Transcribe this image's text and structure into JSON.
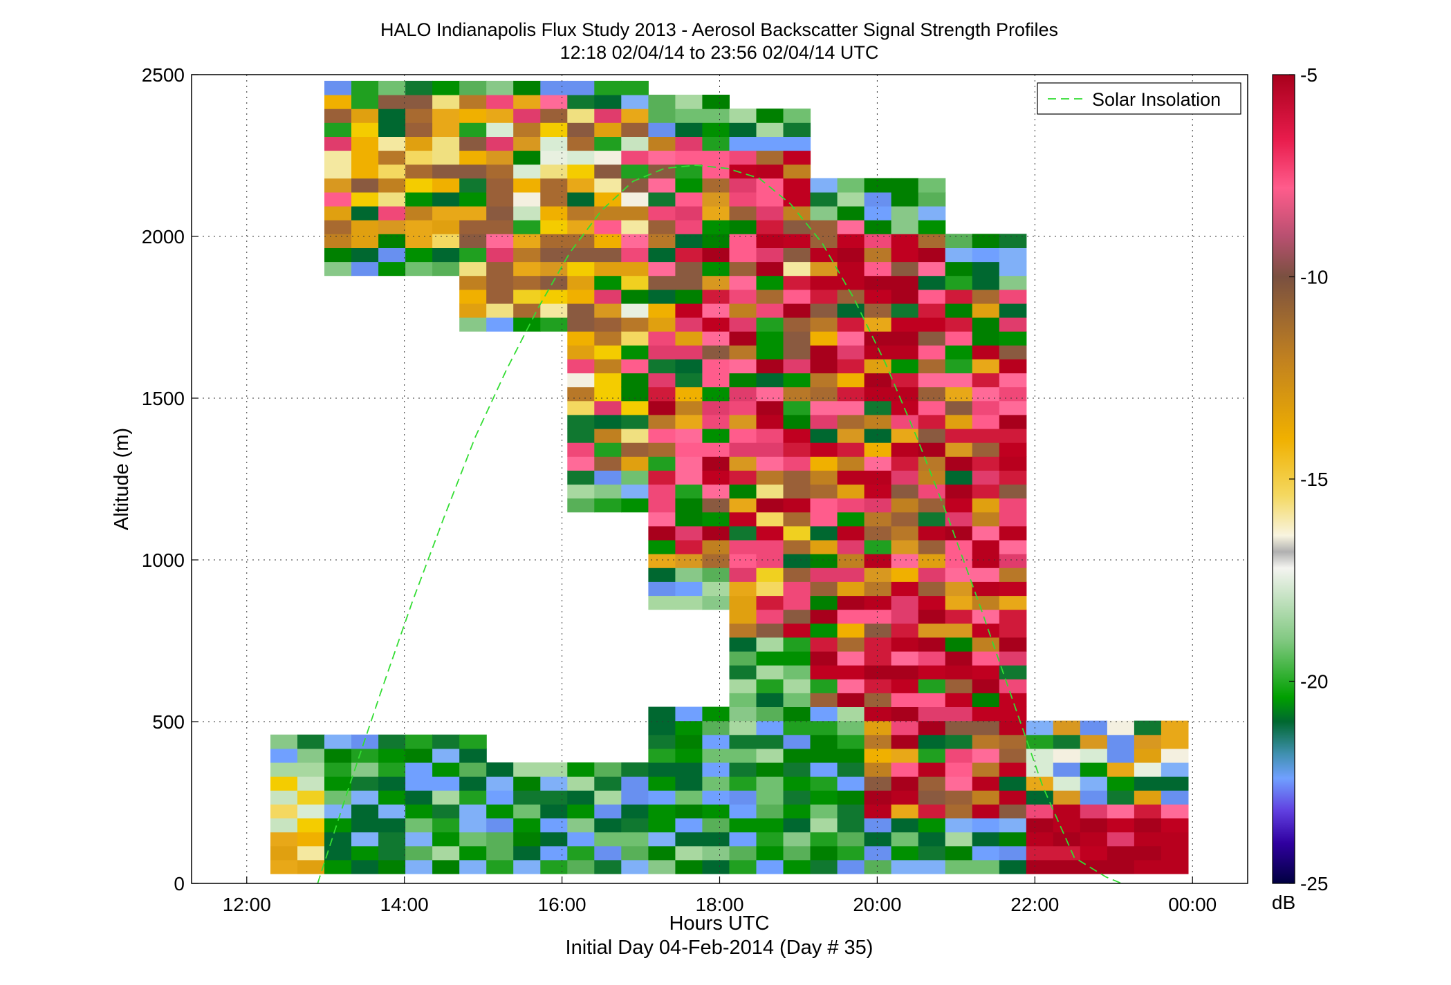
{
  "chart_data": {
    "type": "heatmap",
    "title": "HALO Indianapolis Flux Study 2013 - Aerosol Backscatter Signal Strength Profiles",
    "subtitle": "12:18 02/04/14 to 23:56 02/04/14  UTC",
    "xlabel": "Hours UTC",
    "xlabel2": "Initial Day 04-Feb-2014 (Day # 35)",
    "ylabel": "Altitude (m)",
    "xlim": [
      11.3,
      24.7
    ],
    "ylim": [
      0,
      2500
    ],
    "x_ticks": [
      12,
      14,
      16,
      18,
      20,
      22,
      24
    ],
    "x_tick_labels": [
      "12:00",
      "14:00",
      "16:00",
      "18:00",
      "20:00",
      "22:00",
      "00:00"
    ],
    "y_ticks": [
      0,
      500,
      1000,
      1500,
      2000,
      2500
    ],
    "y_tick_labels": [
      "0",
      "500",
      "1000",
      "1500",
      "2000",
      "2500"
    ],
    "grid": true,
    "legend_position": "top-right",
    "colorbar": {
      "min": -25,
      "max": -5,
      "ticks": [
        -5,
        -10,
        -15,
        -20,
        -25
      ],
      "tick_labels": [
        "-5",
        "-10",
        "-15",
        "-20",
        "-25"
      ],
      "unit": "dB",
      "colormap": "blue-green-yellow-brown-red"
    },
    "time_resolution_hours": 0.3425,
    "altitude_resolution_m": 43,
    "time_start_hour": 12.3,
    "time_end_hour": 23.93,
    "layer_boundaries": [
      {
        "hour_start": 12.3,
        "hour_end": 15.0,
        "top_m": 460,
        "base_m": 30
      },
      {
        "hour_start": 15.0,
        "hour_end": 17.0,
        "top_m": 380,
        "base_m": 30
      },
      {
        "hour_start": 17.0,
        "hour_end": 18.0,
        "top_m": 540,
        "base_m": 30
      },
      {
        "hour_start": 18.0,
        "hour_end": 19.3,
        "top_m": 660,
        "base_m": 30
      },
      {
        "hour_start": 19.3,
        "hour_end": 22.0,
        "top_m": 1600,
        "base_m": 30
      },
      {
        "hour_start": 22.0,
        "hour_end": 23.93,
        "top_m": 500,
        "base_m": 30
      }
    ],
    "upper_layer_boundaries": [
      {
        "hour_start": 13.1,
        "hour_end": 14.7,
        "top_m": 2500,
        "base_m": 1900
      },
      {
        "hour_start": 14.7,
        "hour_end": 16.0,
        "top_m": 2500,
        "base_m": 1700
      },
      {
        "hour_start": 16.0,
        "hour_end": 17.0,
        "top_m": 2500,
        "base_m": 1150
      },
      {
        "hour_start": 17.0,
        "hour_end": 18.0,
        "top_m": 2450,
        "base_m": 850
      },
      {
        "hour_start": 18.0,
        "hour_end": 19.0,
        "top_m": 2400,
        "base_m": 600
      },
      {
        "hour_start": 19.0,
        "hour_end": 20.0,
        "top_m": 2200,
        "base_m": 400
      },
      {
        "hour_start": 20.0,
        "hour_end": 21.0,
        "top_m": 2200,
        "base_m": 30
      },
      {
        "hour_start": 21.0,
        "hour_end": 22.0,
        "top_m": 2000,
        "base_m": 30
      }
    ],
    "series": [
      {
        "name": "Solar Insolation",
        "style": "dashed",
        "color": "#33dd33",
        "x": [
          12.9,
          13.3,
          13.7,
          14.1,
          14.5,
          14.9,
          15.3,
          15.7,
          16.1,
          16.5,
          16.9,
          17.3,
          17.7,
          18.1,
          18.5,
          18.9,
          19.3,
          19.7,
          20.1,
          20.5,
          20.9,
          21.3,
          21.7,
          22.1,
          22.5,
          22.9,
          23.1
        ],
        "y": [
          0,
          300,
          590,
          870,
          1130,
          1380,
          1590,
          1780,
          1950,
          2080,
          2170,
          2210,
          2220,
          2210,
          2180,
          2100,
          1980,
          1810,
          1610,
          1380,
          1130,
          860,
          580,
          300,
          80,
          20,
          0
        ]
      }
    ]
  },
  "colors": {
    "grid": "#333333",
    "solar_line": "#33dd33"
  }
}
